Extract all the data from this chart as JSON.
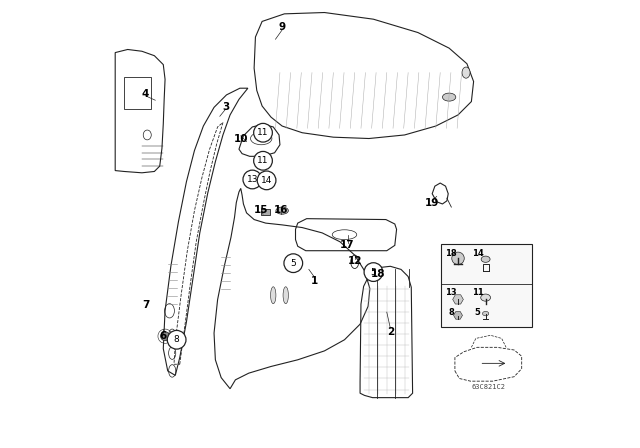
{
  "title": "",
  "bg_color": "#ffffff",
  "fig_width": 6.4,
  "fig_height": 4.48,
  "dpi": 100,
  "diagram_code": "63C821C2"
}
